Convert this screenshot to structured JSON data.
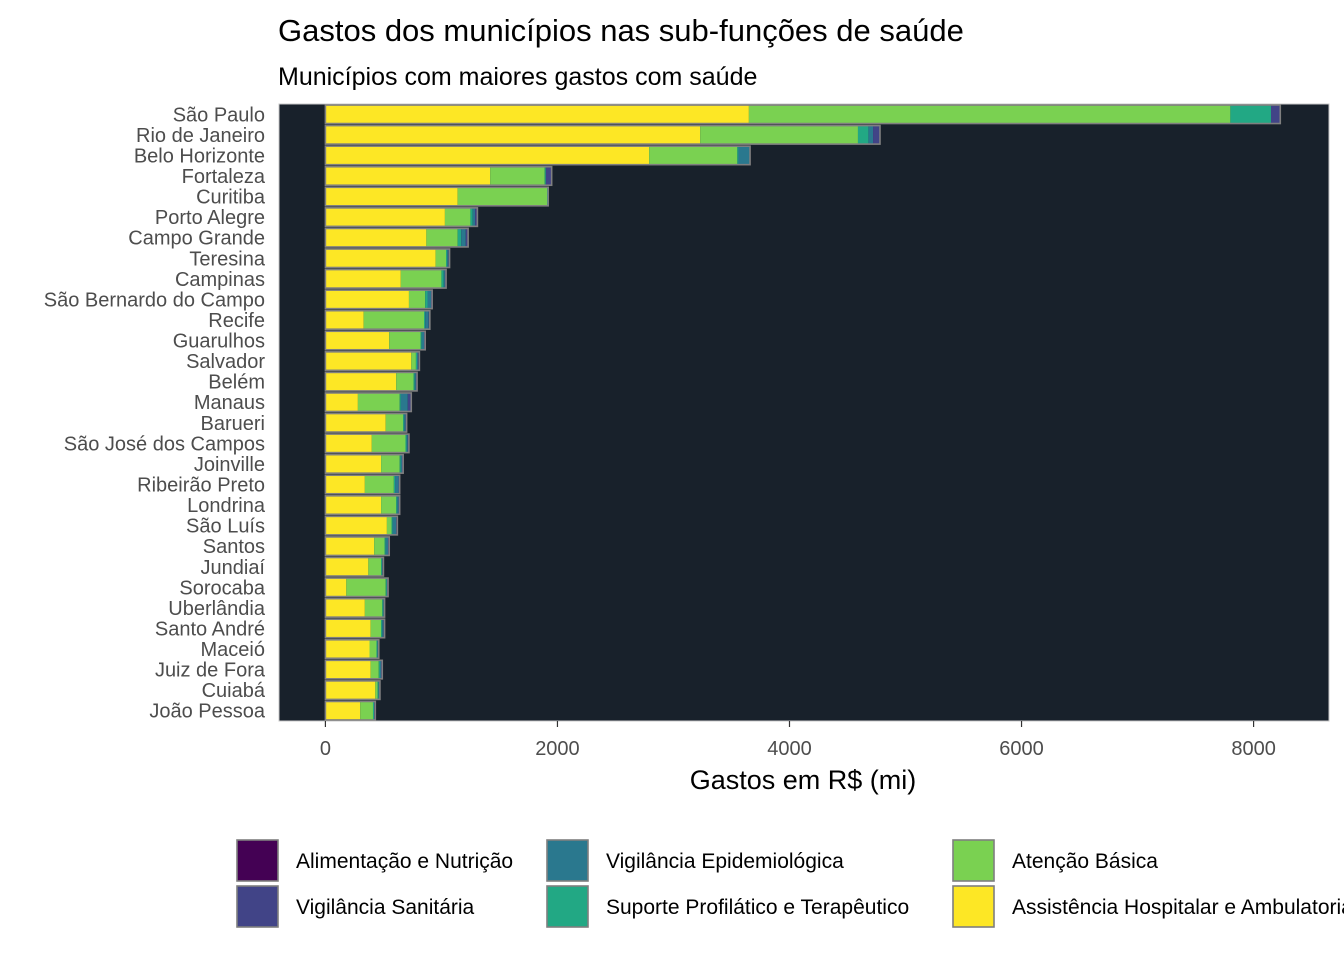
{
  "chart_data": {
    "type": "bar",
    "orientation": "horizontal",
    "stacked": true,
    "title": "Gastos dos municípios nas sub-funções de saúde",
    "subtitle": "Municípios com maiores gastos com saúde",
    "xlabel": "Gastos em R$ (mi)",
    "ylabel": "",
    "xlim": [
      -400,
      8650
    ],
    "xticks": [
      0,
      2000,
      4000,
      6000,
      8000
    ],
    "panel_background": "#18212b",
    "bar_outline": "#7f7f7f",
    "legend_position": "bottom",
    "categories": [
      "São Paulo",
      "Rio de Janeiro",
      "Belo Horizonte",
      "Fortaleza",
      "Curitiba",
      "Porto Alegre",
      "Campo Grande",
      "Teresina",
      "Campinas",
      "São Bernardo do Campo",
      "Recife",
      "Guarulhos",
      "Salvador",
      "Belém",
      "Manaus",
      "Barueri",
      "São José dos Campos",
      "Joinville",
      "Ribeirão Preto",
      "Londrina",
      "São Luís",
      "Santos",
      "Jundiaí",
      "Sorocaba",
      "Uberlândia",
      "Santo André",
      "Maceió",
      "Juiz de Fora",
      "Cuiabá",
      "João Pessoa"
    ],
    "series": [
      {
        "name": "Assistência Hospitalar e Ambulatorial",
        "color": "#fde725",
        "values": [
          3650,
          3230,
          2790,
          1420,
          1140,
          1030,
          870,
          950,
          650,
          720,
          330,
          550,
          740,
          610,
          280,
          520,
          400,
          480,
          340,
          480,
          530,
          420,
          370,
          180,
          340,
          390,
          380,
          390,
          430,
          300
        ]
      },
      {
        "name": "Atenção Básica",
        "color": "#7ad151",
        "values": [
          4150,
          1360,
          760,
          470,
          770,
          220,
          270,
          90,
          350,
          140,
          520,
          270,
          40,
          150,
          360,
          150,
          290,
          160,
          250,
          130,
          40,
          90,
          110,
          340,
          150,
          90,
          60,
          70,
          20,
          110
        ]
      },
      {
        "name": "Suporte Profilático e Terapêutico",
        "color": "#22a884",
        "values": [
          350,
          90,
          10,
          10,
          10,
          20,
          30,
          10,
          20,
          20,
          10,
          10,
          10,
          10,
          10,
          10,
          10,
          10,
          10,
          10,
          10,
          10,
          10,
          10,
          10,
          10,
          10,
          10,
          10,
          10
        ]
      },
      {
        "name": "Vigilância Epidemiológica",
        "color": "#2a788e",
        "values": [
          0,
          40,
          100,
          0,
          0,
          20,
          40,
          10,
          10,
          30,
          30,
          20,
          10,
          10,
          60,
          10,
          10,
          10,
          30,
          10,
          30,
          20,
          0,
          0,
          0,
          10,
          0,
          10,
          0,
          0
        ]
      },
      {
        "name": "Vigilância Sanitária",
        "color": "#414487",
        "values": [
          80,
          60,
          0,
          50,
          0,
          20,
          20,
          10,
          10,
          10,
          10,
          10,
          10,
          10,
          30,
          10,
          10,
          10,
          10,
          10,
          10,
          10,
          10,
          10,
          10,
          10,
          10,
          10,
          10,
          10
        ]
      },
      {
        "name": "Alimentação e Nutrição",
        "color": "#440154",
        "values": [
          0,
          0,
          0,
          0,
          0,
          0,
          0,
          0,
          0,
          0,
          0,
          0,
          0,
          0,
          0,
          0,
          0,
          0,
          0,
          0,
          0,
          0,
          0,
          0,
          0,
          0,
          0,
          0,
          0,
          0
        ]
      }
    ],
    "legend": [
      {
        "label": "Alimentação e Nutrição",
        "color": "#440154"
      },
      {
        "label": "Vigilância Sanitária",
        "color": "#414487"
      },
      {
        "label": "Vigilância Epidemiológica",
        "color": "#2a788e"
      },
      {
        "label": "Suporte Profilático e Terapêutico",
        "color": "#22a884"
      },
      {
        "label": "Atenção Básica",
        "color": "#7ad151"
      },
      {
        "label": "Assistência Hospitalar e Ambulatorial",
        "color": "#fde725"
      }
    ]
  }
}
